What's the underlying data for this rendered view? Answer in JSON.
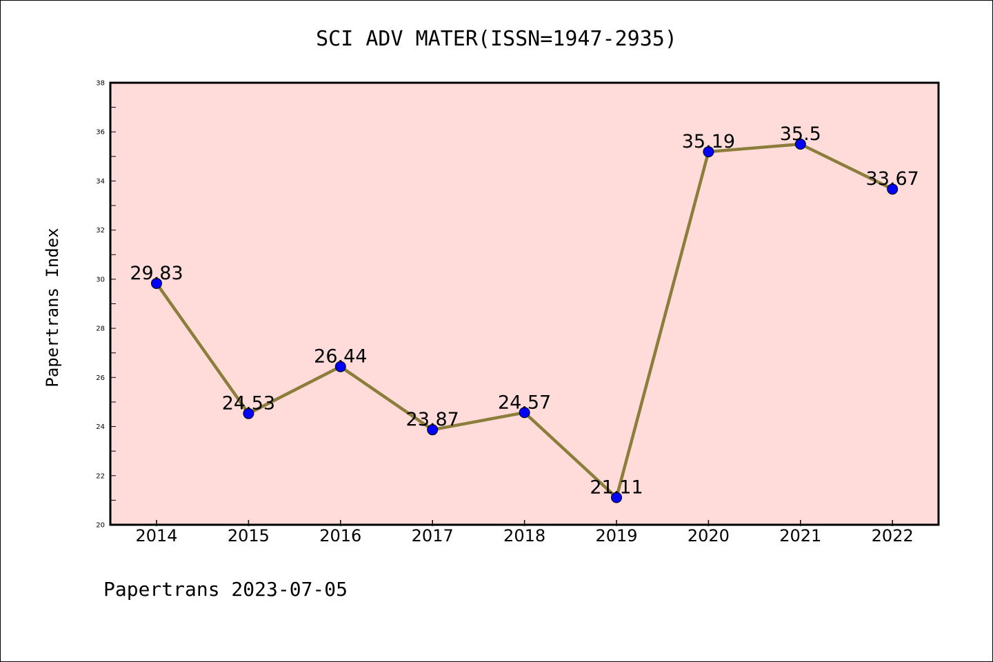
{
  "chart_data": {
    "type": "line",
    "title": "SCI ADV MATER(ISSN=1947-2935)",
    "xlabel": "",
    "ylabel": "Papertrans Index",
    "categories": [
      "2014",
      "2015",
      "2016",
      "2017",
      "2018",
      "2019",
      "2020",
      "2021",
      "2022"
    ],
    "series": [
      {
        "values": [
          29.83,
          24.53,
          26.44,
          23.87,
          24.57,
          21.11,
          35.19,
          35.5,
          33.67
        ],
        "labels": [
          "29.83",
          "24.53",
          "26.44",
          "23.87",
          "24.57",
          "21.11",
          "35.19",
          "35.5",
          "33.67"
        ]
      }
    ],
    "ylim": [
      20,
      38
    ],
    "yticks": [
      20,
      22,
      24,
      26,
      28,
      30,
      32,
      34,
      36,
      38
    ],
    "grid": false,
    "colors": {
      "plot_background": "#ffdcda",
      "line": "#8b7d3a",
      "marker": "#0000ff",
      "axis": "#000000"
    }
  },
  "footer": "Papertrans 2023-07-05"
}
